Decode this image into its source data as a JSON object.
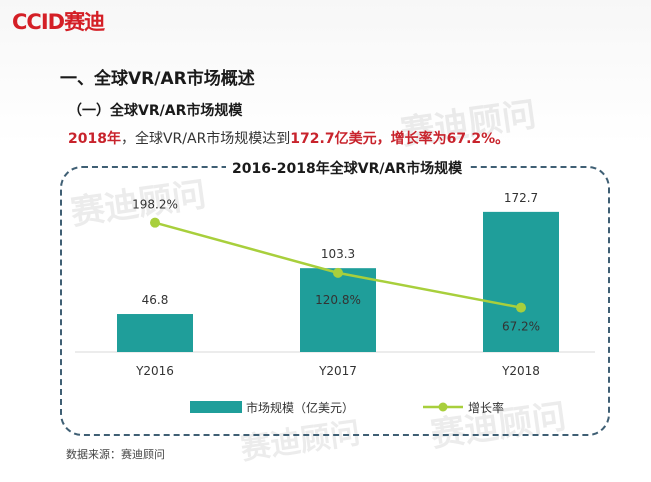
{
  "logo": {
    "text": "CCID赛迪"
  },
  "heading": "一、全球VR/AR市场概述",
  "subheading": "（一）全球VR/AR市场规模",
  "summary": {
    "year": "2018年",
    "middle": "，全球VR/AR市场规模达到",
    "value": "172.7亿美元",
    "comma": "，",
    "growth": "增长率为67.2%。"
  },
  "source": "数据来源：赛迪顾问",
  "watermark": "赛迪顾问",
  "chart_data": {
    "type": "bar",
    "title": "2016-2018年全球VR/AR市场规模",
    "categories": [
      "Y2016",
      "Y2017",
      "Y2018"
    ],
    "series": [
      {
        "name": "市场规模（亿美元）",
        "type": "bar",
        "values": [
          46.8,
          103.3,
          172.7
        ],
        "labels": [
          "46.8",
          "103.3",
          "172.7"
        ],
        "color": "#1f9e9a"
      },
      {
        "name": "增长率",
        "type": "line",
        "values": [
          198.2,
          120.8,
          67.2
        ],
        "labels": [
          "198.2%",
          "120.8%",
          "67.2%"
        ],
        "color": "#a8cf3c"
      }
    ],
    "legend_position": "bottom",
    "grid": false
  }
}
